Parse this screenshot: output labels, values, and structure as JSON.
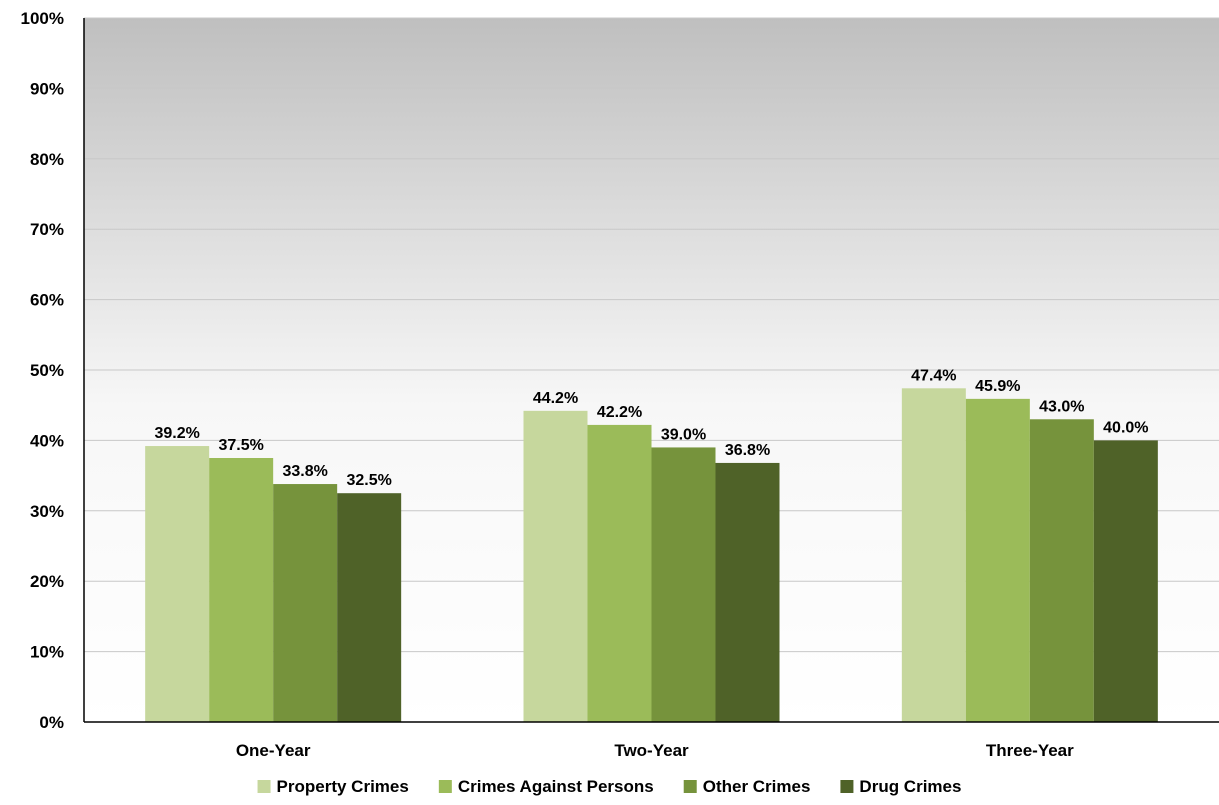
{
  "chart_data": {
    "type": "bar",
    "categories": [
      "One-Year",
      "Two-Year",
      "Three-Year"
    ],
    "series": [
      {
        "name": "Property Crimes",
        "values": [
          39.2,
          44.2,
          47.4
        ],
        "labels": [
          "39.2%",
          "44.2%",
          "47.4%"
        ],
        "color": "#c6d79d"
      },
      {
        "name": "Crimes Against Persons",
        "values": [
          37.5,
          42.2,
          45.9
        ],
        "labels": [
          "37.5%",
          "42.2%",
          "45.9%"
        ],
        "color": "#9bbb59"
      },
      {
        "name": "Other Crimes",
        "values": [
          33.8,
          39.0,
          43.0
        ],
        "labels": [
          "33.8%",
          "39.0%",
          "43.0%"
        ],
        "color": "#76933c"
      },
      {
        "name": "Drug Crimes",
        "values": [
          32.5,
          36.8,
          40.0
        ],
        "labels": [
          "32.5%",
          "36.8%",
          "40.0%"
        ],
        "color": "#4f6228"
      }
    ],
    "yticks": [
      "0%",
      "10%",
      "20%",
      "30%",
      "40%",
      "50%",
      "60%",
      "70%",
      "80%",
      "90%",
      "100%"
    ],
    "ylim": [
      0,
      100
    ],
    "grid": true,
    "legend_position": "bottom",
    "plot_background": {
      "top": "#bfbfbf",
      "bottom": "#ffffff"
    },
    "gridline_color": "#c8c8c8"
  }
}
